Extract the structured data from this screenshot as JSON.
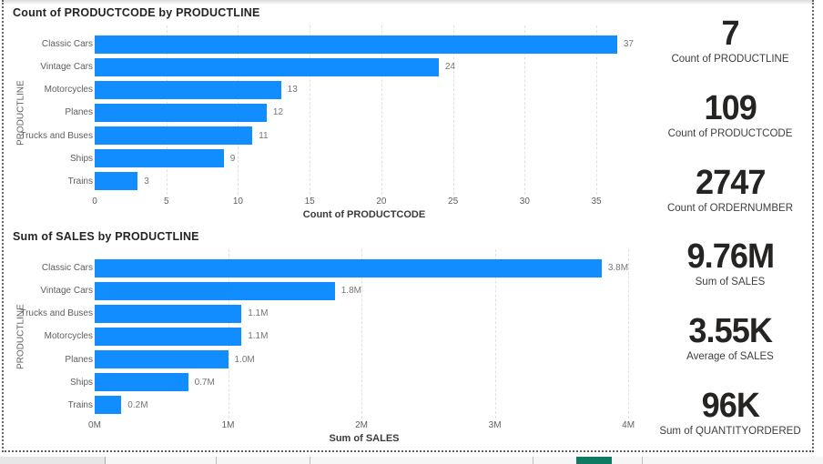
{
  "colors": {
    "bar": "#118DFF",
    "accent_teal": "#0E7A5F",
    "title_text": "#252423",
    "axis_text": "#605E5C"
  },
  "chart_data": [
    {
      "type": "bar",
      "orientation": "horizontal",
      "title": "Count of PRODUCTCODE by PRODUCTLINE",
      "categories": [
        "Classic Cars",
        "Vintage Cars",
        "Motorcycles",
        "Planes",
        "Trucks and Buses",
        "Ships",
        "Trains"
      ],
      "values": [
        37,
        24,
        13,
        12,
        11,
        9,
        3
      ],
      "value_labels": [
        "37",
        "24",
        "13",
        "12",
        "11",
        "9",
        "3"
      ],
      "xlabel": "Count of PRODUCTCODE",
      "ylabel": "PRODUCTLINE",
      "xlim": [
        0,
        37.6
      ],
      "grid": "vertical-dashed",
      "legend": "none",
      "ticks": [
        {
          "v": 0,
          "label": "0"
        },
        {
          "v": 5,
          "label": "5"
        },
        {
          "v": 10,
          "label": "10"
        },
        {
          "v": 15,
          "label": "15"
        },
        {
          "v": 20,
          "label": "20"
        },
        {
          "v": 25,
          "label": "25"
        },
        {
          "v": 30,
          "label": "30"
        },
        {
          "v": 35,
          "label": "35"
        }
      ]
    },
    {
      "type": "bar",
      "orientation": "horizontal",
      "title": "Sum of SALES by PRODUCTLINE",
      "categories": [
        "Classic Cars",
        "Vintage Cars",
        "Trucks and Buses",
        "Motorcycles",
        "Planes",
        "Ships",
        "Trains"
      ],
      "values": [
        3.8,
        1.8,
        1.1,
        1.1,
        1.0,
        0.7,
        0.2
      ],
      "value_labels": [
        "3.8M",
        "1.8M",
        "1.1M",
        "1.1M",
        "1.0M",
        "0.7M",
        "0.2M"
      ],
      "xlabel": "Sum of SALES",
      "ylabel": "PRODUCTLINE",
      "xlim": [
        0,
        4.04
      ],
      "grid": "vertical-dashed",
      "legend": "none",
      "ticks": [
        {
          "v": 0,
          "label": "0M"
        },
        {
          "v": 1,
          "label": "1M"
        },
        {
          "v": 2,
          "label": "2M"
        },
        {
          "v": 3,
          "label": "3M"
        },
        {
          "v": 4,
          "label": "4M"
        }
      ]
    }
  ],
  "kpis": [
    {
      "value": "7",
      "label": "Count of PRODUCTLINE"
    },
    {
      "value": "109",
      "label": "Count of PRODUCTCODE"
    },
    {
      "value": "2747",
      "label": "Count of ORDERNUMBER"
    },
    {
      "value": "9.76M",
      "label": "Sum of SALES"
    },
    {
      "value": "3.55K",
      "label": "Average of SALES"
    },
    {
      "value": "96K",
      "label": "Sum of QUANTITYORDERED"
    }
  ]
}
